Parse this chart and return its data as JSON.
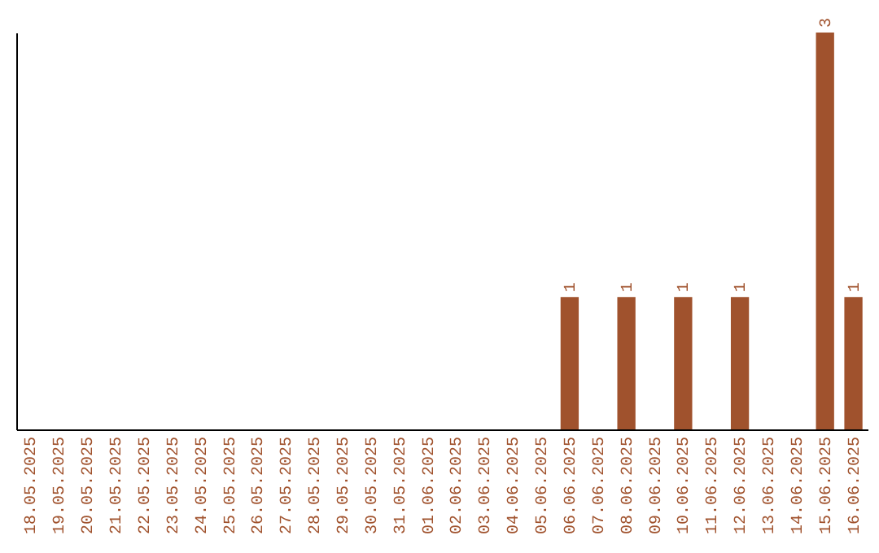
{
  "chart_data": {
    "type": "bar",
    "categories": [
      "18.05.2025",
      "19.05.2025",
      "20.05.2025",
      "21.05.2025",
      "22.05.2025",
      "23.05.2025",
      "24.05.2025",
      "25.05.2025",
      "26.05.2025",
      "27.05.2025",
      "28.05.2025",
      "29.05.2025",
      "30.05.2025",
      "31.05.2025",
      "01.06.2025",
      "02.06.2025",
      "03.06.2025",
      "04.06.2025",
      "05.06.2025",
      "06.06.2025",
      "07.06.2025",
      "08.06.2025",
      "09.06.2025",
      "10.06.2025",
      "11.06.2025",
      "12.06.2025",
      "13.06.2025",
      "14.06.2025",
      "15.06.2025",
      "16.06.2025"
    ],
    "values": [
      null,
      null,
      null,
      null,
      null,
      null,
      null,
      null,
      null,
      null,
      null,
      null,
      null,
      null,
      null,
      null,
      null,
      null,
      null,
      1,
      null,
      1,
      null,
      1,
      null,
      1,
      null,
      null,
      3,
      1
    ],
    "value_labels": [
      null,
      null,
      null,
      null,
      null,
      null,
      null,
      null,
      null,
      null,
      null,
      null,
      null,
      null,
      null,
      null,
      null,
      null,
      null,
      "1",
      null,
      "1",
      null,
      "1",
      null,
      "1",
      null,
      null,
      "3",
      "1"
    ],
    "color": "#a0522d",
    "grid": false,
    "tick_labels": "x"
  }
}
